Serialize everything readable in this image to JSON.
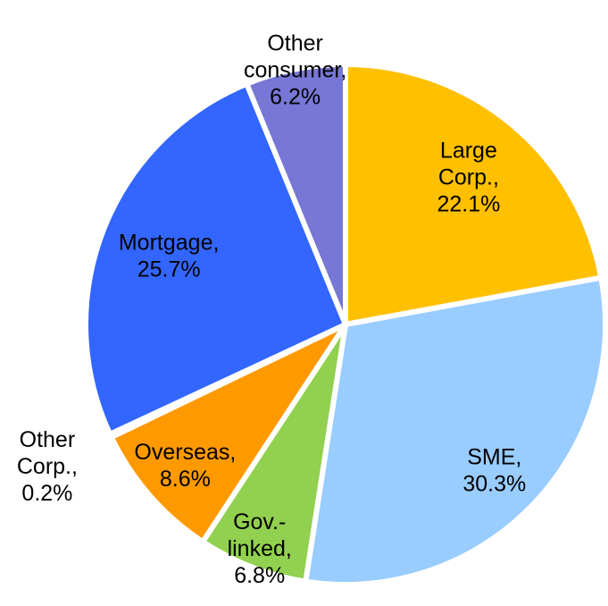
{
  "chart_data": {
    "type": "pie",
    "categories": [
      "Large Corp.,",
      "SME,",
      "Gov.-linked,",
      "Overseas,",
      "Other Corp.,",
      "Mortgage,",
      "Other consumer,"
    ],
    "values": [
      22.1,
      30.3,
      6.8,
      8.6,
      0.2,
      25.7,
      6.2
    ],
    "value_labels": [
      "22.1%",
      "30.3%",
      "6.8%",
      "8.6%",
      "0.2%",
      "25.7%",
      "6.2%"
    ],
    "colors": [
      "#ffc000",
      "#99ccff",
      "#92d050",
      "#ff9900",
      "#404040",
      "#3366ff",
      "#7777d6"
    ]
  }
}
